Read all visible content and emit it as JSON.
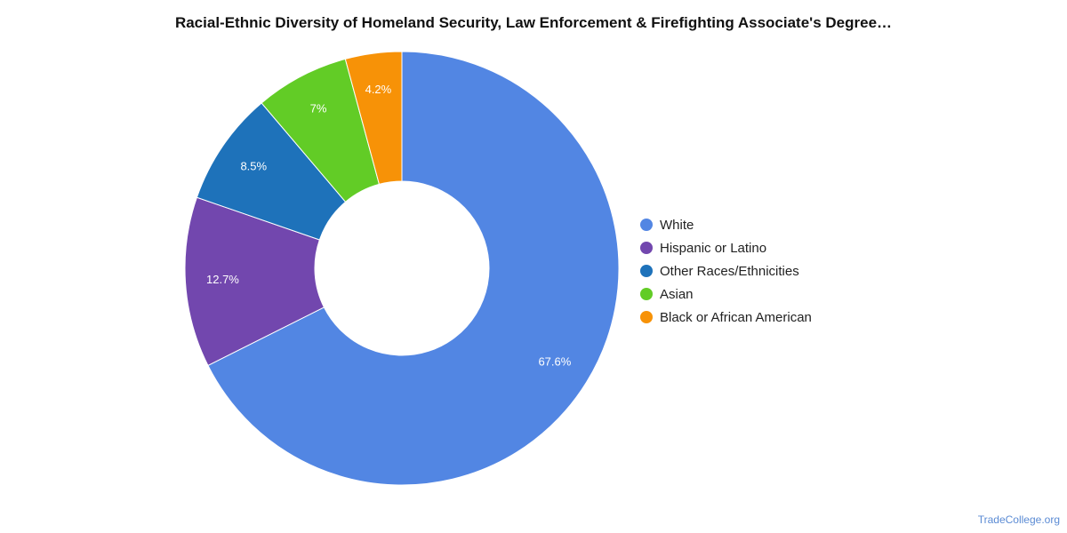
{
  "chart_data": {
    "type": "pie",
    "title": "Racial-Ethnic Diversity of Homeland Security, Law Enforcement & Firefighting Associate's Degree…",
    "donut": true,
    "legend_position": "right",
    "slices": [
      {
        "label": "White",
        "value": 67.6,
        "display": "67.6%",
        "color": "#5286E3"
      },
      {
        "label": "Hispanic or Latino",
        "value": 12.7,
        "display": "12.7%",
        "color": "#7247AE"
      },
      {
        "label": "Other Races/Ethnicities",
        "value": 8.5,
        "display": "8.5%",
        "color": "#1E72BA"
      },
      {
        "label": "Asian",
        "value": 7.0,
        "display": "7%",
        "color": "#62CC26"
      },
      {
        "label": "Black or African American",
        "value": 4.2,
        "display": "4.2%",
        "color": "#F79207"
      }
    ]
  },
  "watermark": "TradeCollege.org"
}
